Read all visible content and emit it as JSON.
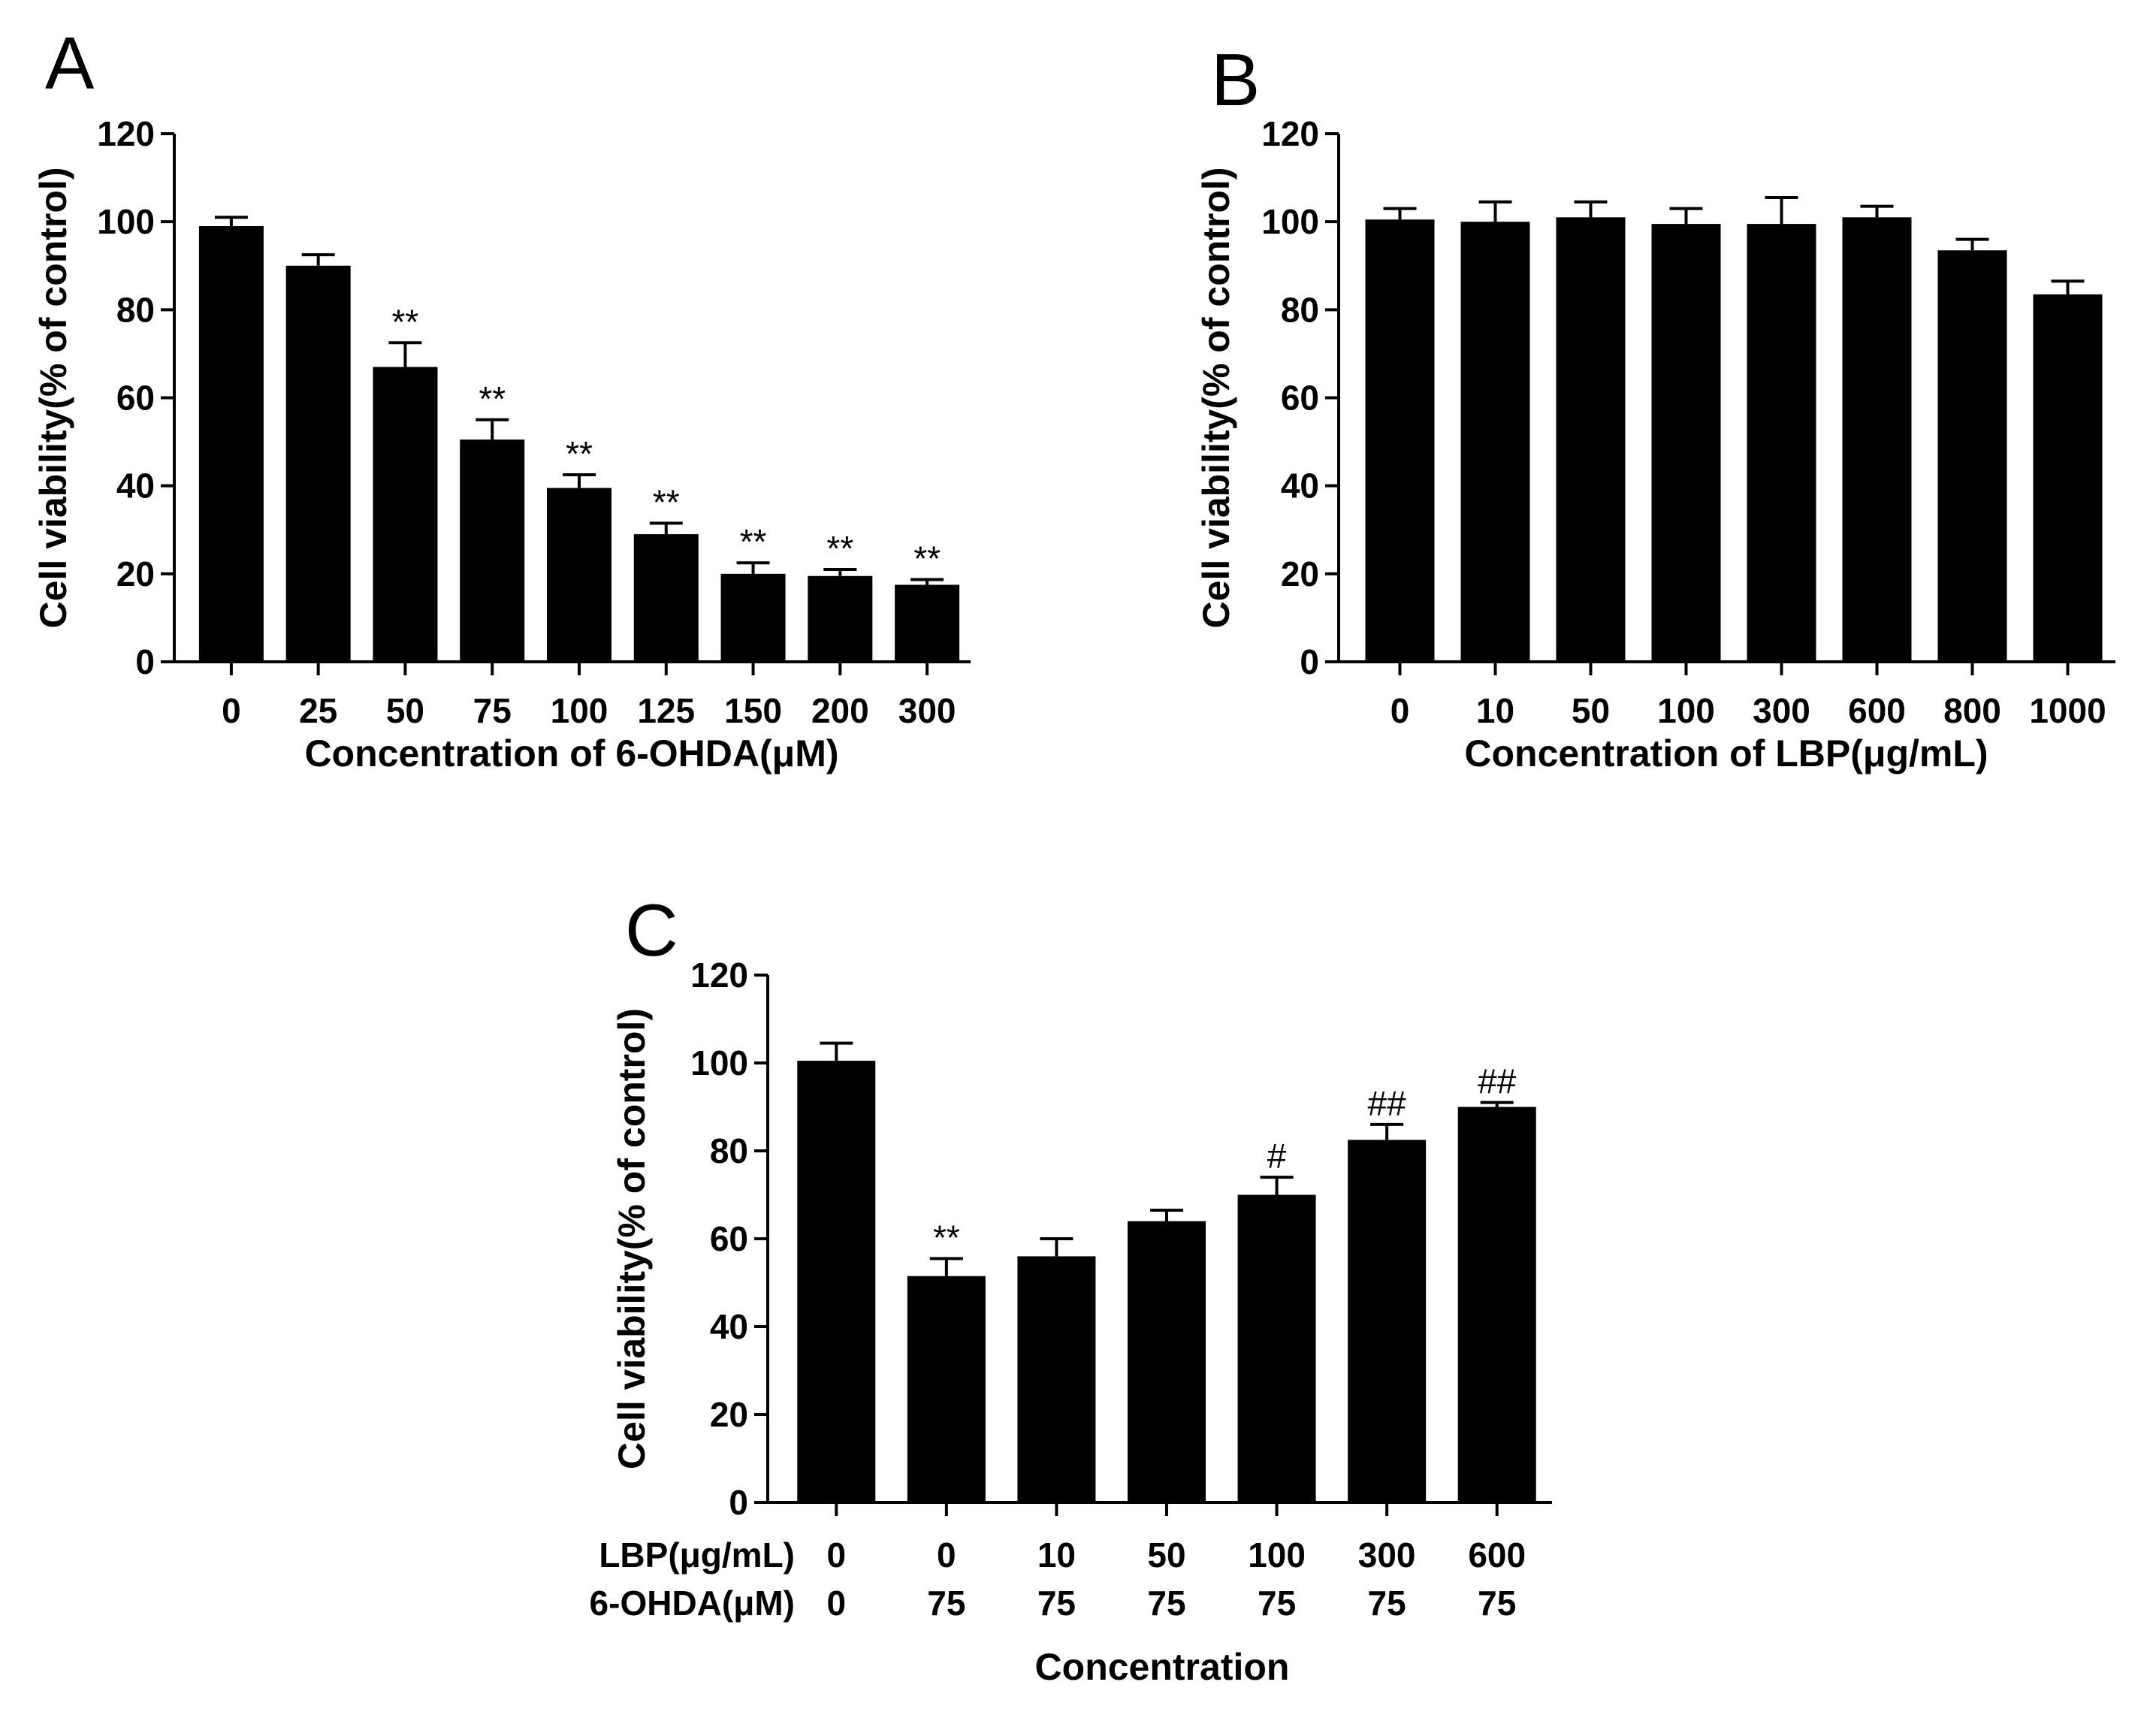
{
  "chart_data": [
    {
      "type": "bar",
      "panel": "A",
      "title": "",
      "xlabel": "Concentration of 6-OHDA(μM)",
      "ylabel": "Cell viability(% of control)",
      "ylim": [
        0,
        120
      ],
      "yticks": [
        0,
        20,
        40,
        60,
        80,
        100,
        120
      ],
      "categories": [
        "0",
        "25",
        "50",
        "75",
        "100",
        "125",
        "150",
        "200",
        "300"
      ],
      "values": [
        99,
        90,
        67,
        50.5,
        39.5,
        29,
        20,
        19.5,
        17.5
      ],
      "errors": [
        2,
        2.5,
        5.5,
        4.5,
        3,
        2.5,
        2.5,
        1.5,
        1.2
      ],
      "annotations": [
        "",
        "",
        "**",
        "**",
        "**",
        "**",
        "**",
        "**",
        "**"
      ],
      "bar_color": "#000000"
    },
    {
      "type": "bar",
      "panel": "B",
      "title": "",
      "xlabel": "Concentration of LBP(μg/mL)",
      "ylabel": "Cell viability(% of control)",
      "ylim": [
        0,
        120
      ],
      "yticks": [
        0,
        20,
        40,
        60,
        80,
        100,
        120
      ],
      "categories": [
        "0",
        "10",
        "50",
        "100",
        "300",
        "600",
        "800",
        "1000"
      ],
      "values": [
        100.5,
        100,
        101,
        99.5,
        99.5,
        101,
        93.5,
        83.5
      ],
      "errors": [
        2.5,
        4.5,
        3.5,
        3.5,
        6,
        2.5,
        2.5,
        3
      ],
      "annotations": [
        "",
        "",
        "",
        "",
        "",
        "",
        "",
        ""
      ],
      "bar_color": "#000000"
    },
    {
      "type": "bar",
      "panel": "C",
      "title": "",
      "xlabel": "Concentration",
      "ylabel": "Cell viability(% of control)",
      "ylim": [
        0,
        120
      ],
      "yticks": [
        0,
        20,
        40,
        60,
        80,
        100,
        120
      ],
      "row_labels": [
        "LBP(μg/mL)",
        "6-OHDA(μM)"
      ],
      "categories": [
        [
          "0",
          "0"
        ],
        [
          "0",
          "75"
        ],
        [
          "10",
          "75"
        ],
        [
          "50",
          "75"
        ],
        [
          "100",
          "75"
        ],
        [
          "300",
          "75"
        ],
        [
          "600",
          "75"
        ]
      ],
      "values": [
        100.5,
        51.5,
        56,
        64,
        70,
        82.5,
        90
      ],
      "errors": [
        4,
        4,
        4,
        2.5,
        4,
        3.5,
        1
      ],
      "annotations": [
        "",
        "**",
        "",
        "",
        "#",
        "##",
        "##"
      ],
      "bar_color": "#000000"
    }
  ]
}
